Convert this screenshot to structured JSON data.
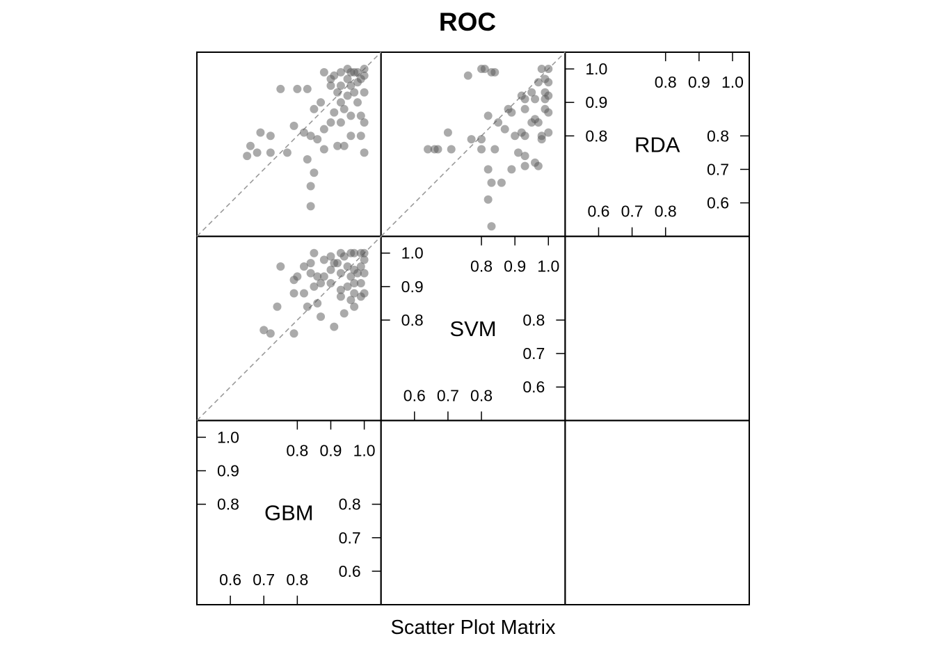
{
  "chart_data": {
    "type": "scatter",
    "title": "ROC",
    "xlabel": "Scatter Plot Matrix",
    "ylabel": "",
    "variables": [
      "GBM",
      "SVM",
      "RDA"
    ],
    "limits": [
      0.5,
      1.05
    ],
    "tick_labels": {
      "low": [
        "0.6",
        "0.7",
        "0.8"
      ],
      "high": [
        "0.8",
        "0.9",
        "1.0"
      ]
    },
    "reference_line": "y = x (dashed)",
    "point_color": "#555555",
    "point_opacity": 0.5,
    "pairs": [
      {
        "x": "SVM",
        "y": "RDA",
        "points": [
          [
            0.8,
            1.0
          ],
          [
            0.81,
            1.0
          ],
          [
            0.83,
            0.99
          ],
          [
            0.84,
            0.99
          ],
          [
            0.76,
            0.98
          ],
          [
            0.92,
            0.92
          ],
          [
            0.93,
            0.91
          ],
          [
            0.95,
            0.93
          ],
          [
            0.97,
            0.96
          ],
          [
            1.0,
            1.0
          ],
          [
            0.98,
            1.0
          ],
          [
            1.0,
            0.96
          ],
          [
            0.99,
            0.93
          ],
          [
            0.96,
            0.91
          ],
          [
            0.88,
            0.88
          ],
          [
            0.89,
            0.87
          ],
          [
            0.93,
            0.88
          ],
          [
            0.95,
            0.84
          ],
          [
            0.97,
            0.84
          ],
          [
            1.0,
            0.87
          ],
          [
            0.99,
            0.88
          ],
          [
            0.82,
            0.86
          ],
          [
            0.85,
            0.84
          ],
          [
            0.87,
            0.82
          ],
          [
            0.9,
            0.8
          ],
          [
            0.92,
            0.81
          ],
          [
            0.93,
            0.8
          ],
          [
            0.96,
            0.85
          ],
          [
            0.98,
            0.8
          ],
          [
            1.0,
            0.81
          ],
          [
            0.7,
            0.81
          ],
          [
            0.77,
            0.79
          ],
          [
            0.8,
            0.79
          ],
          [
            0.66,
            0.76
          ],
          [
            0.64,
            0.76
          ],
          [
            0.67,
            0.76
          ],
          [
            0.71,
            0.76
          ],
          [
            0.8,
            0.76
          ],
          [
            0.84,
            0.76
          ],
          [
            0.91,
            0.75
          ],
          [
            0.93,
            0.74
          ],
          [
            0.96,
            0.72
          ],
          [
            0.82,
            0.7
          ],
          [
            0.89,
            0.7
          ],
          [
            0.93,
            0.71
          ],
          [
            0.97,
            0.71
          ],
          [
            0.98,
            0.79
          ],
          [
            0.99,
            0.91
          ],
          [
            1.0,
            0.92
          ],
          [
            0.99,
            0.97
          ],
          [
            0.83,
            0.66
          ],
          [
            0.86,
            0.66
          ],
          [
            0.82,
            0.61
          ],
          [
            0.83,
            0.53
          ]
        ]
      },
      {
        "x": "GBM",
        "y": "RDA",
        "points": [
          [
            0.88,
            0.99
          ],
          [
            0.9,
            0.97
          ],
          [
            0.91,
            0.98
          ],
          [
            0.93,
            0.99
          ],
          [
            0.95,
            1.0
          ],
          [
            0.96,
            0.99
          ],
          [
            0.97,
            0.99
          ],
          [
            0.98,
            0.99
          ],
          [
            1.0,
            1.0
          ],
          [
            1.0,
            0.98
          ],
          [
            0.99,
            0.97
          ],
          [
            0.98,
            0.96
          ],
          [
            0.97,
            0.93
          ],
          [
            0.95,
            0.92
          ],
          [
            0.93,
            0.9
          ],
          [
            0.94,
            0.88
          ],
          [
            0.96,
            0.86
          ],
          [
            0.99,
            0.86
          ],
          [
            1.0,
            0.84
          ],
          [
            0.93,
            0.84
          ],
          [
            0.91,
            0.87
          ],
          [
            0.9,
            0.84
          ],
          [
            0.88,
            0.82
          ],
          [
            0.86,
            0.79
          ],
          [
            0.84,
            0.8
          ],
          [
            0.82,
            0.81
          ],
          [
            0.79,
            0.83
          ],
          [
            0.75,
            0.94
          ],
          [
            0.72,
            0.8
          ],
          [
            0.69,
            0.81
          ],
          [
            0.68,
            0.75
          ],
          [
            0.66,
            0.77
          ],
          [
            0.65,
            0.74
          ],
          [
            0.72,
            0.75
          ],
          [
            0.77,
            0.75
          ],
          [
            0.83,
            0.73
          ],
          [
            0.88,
            0.76
          ],
          [
            0.92,
            0.77
          ],
          [
            1.0,
            0.75
          ],
          [
            0.99,
            0.8
          ],
          [
            0.84,
            0.65
          ],
          [
            0.96,
            0.8
          ],
          [
            0.94,
            0.77
          ],
          [
            0.98,
            0.9
          ],
          [
            0.96,
            0.95
          ],
          [
            0.93,
            0.95
          ],
          [
            0.87,
            0.9
          ],
          [
            0.85,
            0.88
          ],
          [
            0.83,
            0.94
          ],
          [
            0.8,
            0.94
          ],
          [
            0.92,
            0.93
          ],
          [
            0.95,
            0.97
          ],
          [
            1.0,
            0.93
          ],
          [
            0.9,
            0.95
          ],
          [
            0.85,
            0.69
          ],
          [
            0.84,
            0.59
          ]
        ]
      },
      {
        "x": "GBM",
        "y": "SVM",
        "points": [
          [
            0.85,
            1.0
          ],
          [
            0.88,
            0.98
          ],
          [
            0.9,
            0.99
          ],
          [
            0.91,
            0.97
          ],
          [
            0.93,
            1.0
          ],
          [
            0.94,
            0.99
          ],
          [
            0.96,
            1.0
          ],
          [
            0.97,
            1.0
          ],
          [
            0.99,
            1.0
          ],
          [
            1.0,
            1.0
          ],
          [
            1.0,
            0.98
          ],
          [
            0.99,
            0.96
          ],
          [
            0.97,
            0.95
          ],
          [
            0.95,
            0.96
          ],
          [
            0.92,
            0.97
          ],
          [
            0.9,
            0.95
          ],
          [
            0.88,
            0.93
          ],
          [
            0.86,
            0.93
          ],
          [
            0.84,
            0.94
          ],
          [
            0.8,
            0.93
          ],
          [
            0.79,
            0.92
          ],
          [
            0.82,
            0.96
          ],
          [
            0.84,
            0.97
          ],
          [
            0.93,
            0.94
          ],
          [
            0.96,
            0.93
          ],
          [
            0.98,
            0.94
          ],
          [
            1.0,
            0.94
          ],
          [
            0.99,
            0.91
          ],
          [
            0.97,
            0.91
          ],
          [
            0.95,
            0.9
          ],
          [
            0.93,
            0.89
          ],
          [
            0.9,
            0.91
          ],
          [
            0.87,
            0.91
          ],
          [
            0.85,
            0.9
          ],
          [
            0.79,
            0.88
          ],
          [
            0.82,
            0.88
          ],
          [
            0.86,
            0.85
          ],
          [
            0.83,
            0.84
          ],
          [
            0.87,
            0.81
          ],
          [
            0.91,
            0.78
          ],
          [
            0.94,
            0.82
          ],
          [
            0.97,
            0.88
          ],
          [
            0.99,
            0.87
          ],
          [
            1.0,
            0.88
          ],
          [
            0.74,
            0.84
          ],
          [
            0.75,
            0.96
          ],
          [
            0.7,
            0.77
          ],
          [
            0.72,
            0.76
          ],
          [
            0.79,
            0.76
          ],
          [
            0.97,
            0.84
          ],
          [
            0.96,
            0.86
          ],
          [
            0.93,
            0.87
          ]
        ]
      }
    ]
  }
}
